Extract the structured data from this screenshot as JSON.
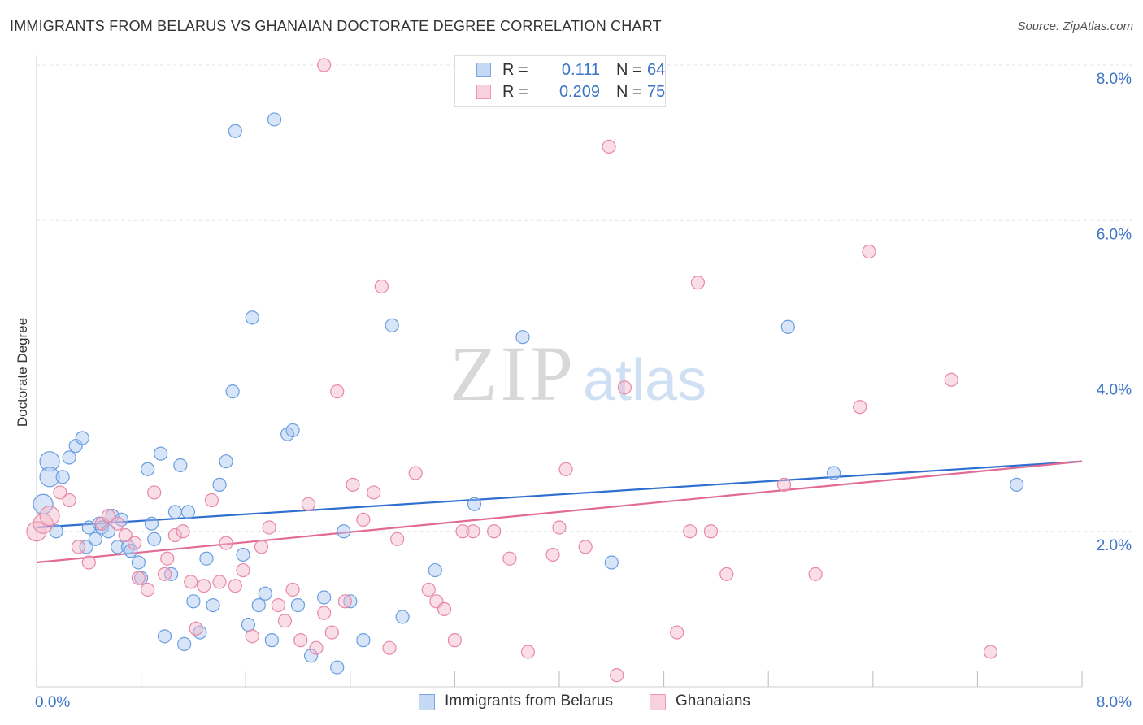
{
  "title": "IMMIGRANTS FROM BELARUS VS GHANAIAN DOCTORATE DEGREE CORRELATION CHART",
  "source": "Source: ZipAtlas.com",
  "watermark": {
    "zip": "ZIP",
    "atlas": "atlas"
  },
  "legend": {
    "rows": [
      {
        "r_label": "R =",
        "r_value": "0.111",
        "n_label": "N =",
        "n_value": "64",
        "color": "#a9c6ef"
      },
      {
        "r_label": "R =",
        "r_value": "0.209",
        "n_label": "N =",
        "n_value": "75",
        "color": "#f4b6c9"
      }
    ]
  },
  "bottom_legend": {
    "items": [
      {
        "label": "Immigrants from Belarus",
        "color": "#a9c6ef"
      },
      {
        "label": "Ghanaians",
        "color": "#f4b6c9"
      }
    ]
  },
  "chart_data": {
    "type": "scatter",
    "ylabel": "Doctorate Degree",
    "xlim": [
      0,
      8
    ],
    "ylim": [
      0,
      8
    ],
    "x_tick_labels": [
      "0.0%",
      "8.0%"
    ],
    "y_tick_labels": [
      "2.0%",
      "4.0%",
      "6.0%",
      "8.0%"
    ],
    "y_ticks": [
      2,
      4,
      6,
      8
    ],
    "x_ticks": [
      0,
      0.8,
      1.6,
      2.4,
      3.2,
      4.0,
      4.8,
      5.6,
      6.4,
      7.2,
      8.0
    ],
    "grid": true,
    "series": [
      {
        "name": "Immigrants from Belarus",
        "color": "#6a9ee0",
        "fill": "#a9c6ef",
        "trend": {
          "x": [
            0,
            8
          ],
          "y": [
            2.05,
            2.9
          ],
          "color": "#2e6fcf"
        },
        "points": [
          [
            0.05,
            2.35
          ],
          [
            0.1,
            2.9
          ],
          [
            0.1,
            2.7
          ],
          [
            0.15,
            2.0
          ],
          [
            0.2,
            2.7
          ],
          [
            0.25,
            2.95
          ],
          [
            0.3,
            3.1
          ],
          [
            0.35,
            3.2
          ],
          [
            0.38,
            1.8
          ],
          [
            0.4,
            2.05
          ],
          [
            0.45,
            1.9
          ],
          [
            0.48,
            2.1
          ],
          [
            0.5,
            2.05
          ],
          [
            0.55,
            2.0
          ],
          [
            0.58,
            2.2
          ],
          [
            0.62,
            1.8
          ],
          [
            0.65,
            2.15
          ],
          [
            0.7,
            1.8
          ],
          [
            0.72,
            1.75
          ],
          [
            0.78,
            1.6
          ],
          [
            0.8,
            1.4
          ],
          [
            0.85,
            2.8
          ],
          [
            0.88,
            2.1
          ],
          [
            0.9,
            1.9
          ],
          [
            0.95,
            3.0
          ],
          [
            0.98,
            0.65
          ],
          [
            1.03,
            1.45
          ],
          [
            1.06,
            2.25
          ],
          [
            1.1,
            2.85
          ],
          [
            1.13,
            0.55
          ],
          [
            1.16,
            2.25
          ],
          [
            1.2,
            1.1
          ],
          [
            1.25,
            0.7
          ],
          [
            1.3,
            1.65
          ],
          [
            1.35,
            1.05
          ],
          [
            1.4,
            2.6
          ],
          [
            1.45,
            2.9
          ],
          [
            1.5,
            3.8
          ],
          [
            1.52,
            7.15
          ],
          [
            1.58,
            1.7
          ],
          [
            1.62,
            0.8
          ],
          [
            1.65,
            4.75
          ],
          [
            1.7,
            1.05
          ],
          [
            1.75,
            1.2
          ],
          [
            1.8,
            0.6
          ],
          [
            1.82,
            7.3
          ],
          [
            1.92,
            3.25
          ],
          [
            1.96,
            3.3
          ],
          [
            2.0,
            1.05
          ],
          [
            2.1,
            0.4
          ],
          [
            2.2,
            1.15
          ],
          [
            2.3,
            0.25
          ],
          [
            2.4,
            1.1
          ],
          [
            2.5,
            0.6
          ],
          [
            2.72,
            4.65
          ],
          [
            2.8,
            0.9
          ],
          [
            3.05,
            1.5
          ],
          [
            3.35,
            2.35
          ],
          [
            3.72,
            4.5
          ],
          [
            4.4,
            1.6
          ],
          [
            5.75,
            4.63
          ],
          [
            6.1,
            2.75
          ],
          [
            7.5,
            2.6
          ],
          [
            2.35,
            2.0
          ]
        ]
      },
      {
        "name": "Ghanaians",
        "color": "#e888a6",
        "fill": "#f4b6c9",
        "trend": {
          "x": [
            0,
            8
          ],
          "y": [
            1.6,
            2.9
          ],
          "color": "#e26a93"
        },
        "points": [
          [
            0.0,
            2.0
          ],
          [
            0.05,
            2.1
          ],
          [
            0.1,
            2.2
          ],
          [
            0.18,
            2.5
          ],
          [
            0.25,
            2.4
          ],
          [
            0.32,
            1.8
          ],
          [
            0.4,
            1.6
          ],
          [
            0.5,
            2.1
          ],
          [
            0.55,
            2.2
          ],
          [
            0.62,
            2.1
          ],
          [
            0.68,
            1.95
          ],
          [
            0.75,
            1.85
          ],
          [
            0.78,
            1.4
          ],
          [
            0.85,
            1.25
          ],
          [
            0.9,
            2.5
          ],
          [
            0.98,
            1.45
          ],
          [
            1.0,
            1.65
          ],
          [
            1.06,
            1.95
          ],
          [
            1.12,
            2.0
          ],
          [
            1.18,
            1.35
          ],
          [
            1.22,
            0.75
          ],
          [
            1.28,
            1.3
          ],
          [
            1.34,
            2.4
          ],
          [
            1.4,
            1.35
          ],
          [
            1.45,
            1.85
          ],
          [
            1.52,
            1.3
          ],
          [
            1.58,
            1.5
          ],
          [
            1.65,
            0.65
          ],
          [
            1.72,
            1.8
          ],
          [
            1.78,
            2.05
          ],
          [
            1.85,
            1.05
          ],
          [
            1.9,
            0.85
          ],
          [
            1.96,
            1.25
          ],
          [
            2.02,
            0.6
          ],
          [
            2.08,
            2.35
          ],
          [
            2.14,
            0.5
          ],
          [
            2.2,
            0.95
          ],
          [
            2.26,
            0.7
          ],
          [
            2.3,
            3.8
          ],
          [
            2.36,
            1.1
          ],
          [
            2.42,
            2.6
          ],
          [
            2.5,
            2.15
          ],
          [
            2.58,
            2.5
          ],
          [
            2.64,
            5.15
          ],
          [
            2.7,
            0.5
          ],
          [
            2.76,
            1.9
          ],
          [
            2.9,
            2.75
          ],
          [
            3.0,
            1.25
          ],
          [
            3.06,
            1.1
          ],
          [
            3.12,
            1.0
          ],
          [
            3.2,
            0.6
          ],
          [
            3.26,
            2.0
          ],
          [
            3.34,
            2.0
          ],
          [
            3.5,
            2.0
          ],
          [
            3.62,
            1.65
          ],
          [
            3.76,
            0.45
          ],
          [
            3.95,
            1.7
          ],
          [
            4.0,
            2.05
          ],
          [
            4.05,
            2.8
          ],
          [
            4.2,
            1.8
          ],
          [
            4.38,
            6.95
          ],
          [
            4.44,
            0.15
          ],
          [
            4.5,
            3.85
          ],
          [
            4.9,
            0.7
          ],
          [
            5.0,
            2.0
          ],
          [
            5.06,
            5.2
          ],
          [
            5.16,
            2.0
          ],
          [
            5.28,
            1.45
          ],
          [
            5.72,
            2.6
          ],
          [
            5.96,
            1.45
          ],
          [
            6.3,
            3.6
          ],
          [
            6.37,
            5.6
          ],
          [
            7.0,
            3.95
          ],
          [
            7.3,
            0.45
          ],
          [
            2.2,
            8.0
          ]
        ]
      }
    ]
  }
}
